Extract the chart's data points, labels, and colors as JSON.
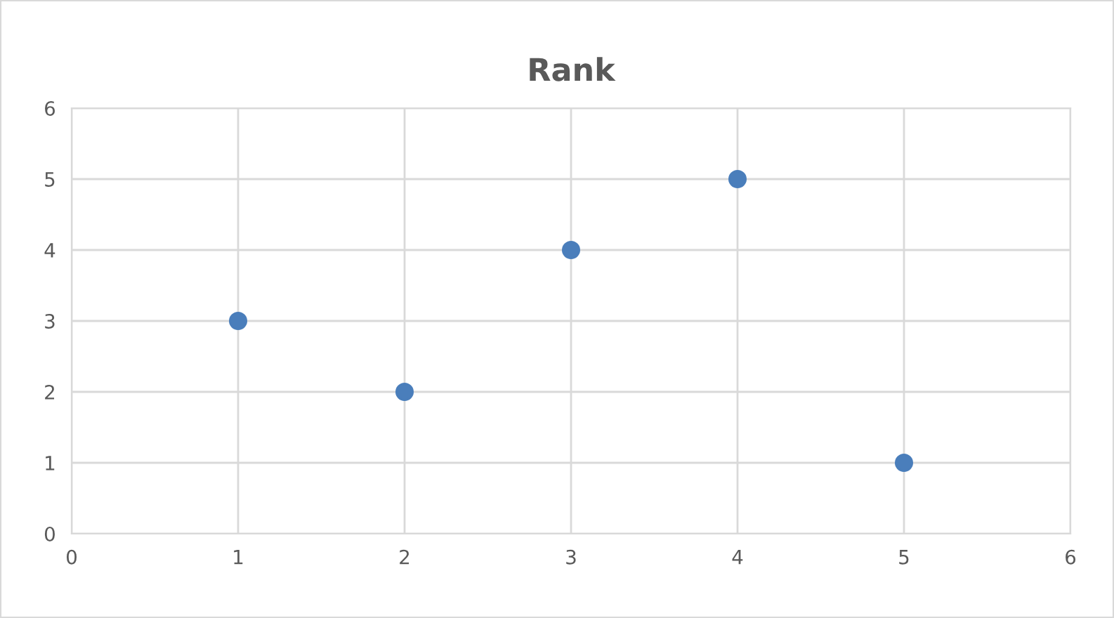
{
  "chart_data": {
    "type": "scatter",
    "title": "Rank",
    "series": [
      {
        "color": "#4a7ebb",
        "x": [
          1,
          2,
          3,
          4,
          5
        ],
        "values": [
          3,
          2,
          4,
          5,
          1
        ]
      }
    ],
    "xlim": [
      0,
      6
    ],
    "xticks": [
      0,
      1,
      2,
      3,
      4,
      5,
      6
    ],
    "ylim": [
      0,
      6
    ],
    "yticks": [
      0,
      1,
      2,
      3,
      4,
      5,
      6
    ],
    "grid": true,
    "marker": "circle",
    "legend": false
  }
}
